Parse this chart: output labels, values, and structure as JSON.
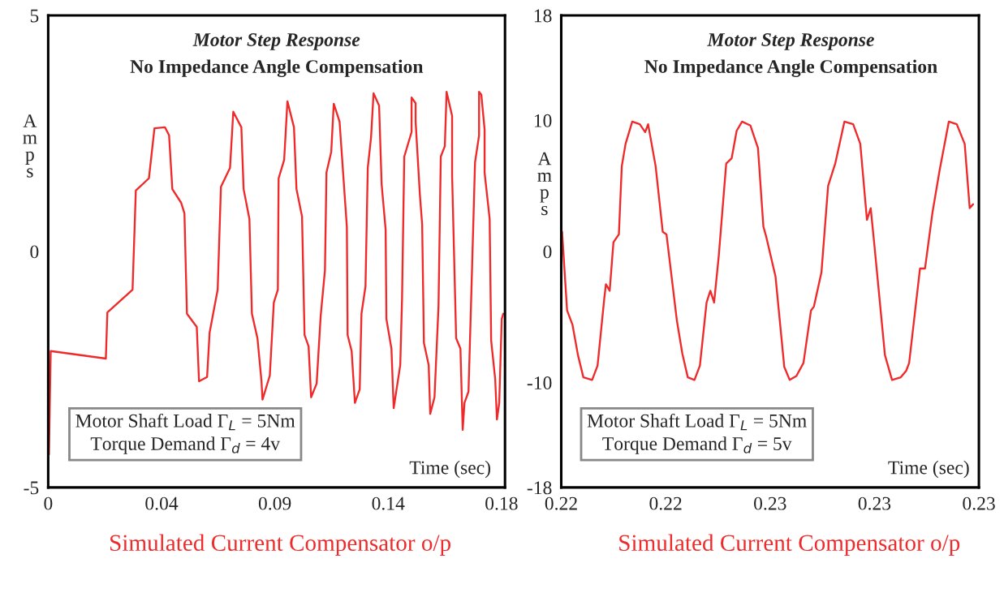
{
  "chart_data": [
    {
      "type": "line",
      "title": "Motor Step Response",
      "subtitle": "No Impedance Angle Compensation",
      "xlabel": "Time (sec)",
      "ylabel": "Amps",
      "annotations": [
        "Motor Shaft Load Γ$_{L}$ = 5Nm\nTorque Demand Γ$_{d}$ = 4v",
        "Simulated Current Compensator o/p"
      ],
      "xlim": [
        0,
        0.1814
      ],
      "ylim": [
        -5,
        5
      ],
      "xticks": [
        0,
        {
          "value": 0.045,
          "label": "0.04"
        },
        0.09,
        {
          "value": 0.135,
          "label": "0.14"
        },
        0.18
      ],
      "yticks": [
        -5,
        0,
        5
      ],
      "grid": false,
      "series": [
        {
          "color": "#ee2a2a",
          "x": [
            0.0003,
            0.001,
            0.0229,
            0.0235,
            0.0335,
            0.0348,
            0.04,
            0.0422,
            0.0464,
            0.048,
            0.0493,
            0.0528,
            0.0541,
            0.0551,
            0.059,
            0.0599,
            0.0631,
            0.0641,
            0.0673,
            0.0686,
            0.0722,
            0.0735,
            0.0767,
            0.0776,
            0.0799,
            0.0809,
            0.0831,
            0.0847,
            0.0851,
            0.088,
            0.0896,
            0.0912,
            0.0915,
            0.0937,
            0.095,
            0.0976,
            0.0986,
            0.1008,
            0.1018,
            0.1034,
            0.1044,
            0.1066,
            0.1082,
            0.1099,
            0.1105,
            0.1124,
            0.1134,
            0.1157,
            0.1186,
            0.1189,
            0.1205,
            0.1218,
            0.1237,
            0.1244,
            0.126,
            0.1269,
            0.1282,
            0.1292,
            0.1314,
            0.1324,
            0.134,
            0.1343,
            0.1363,
            0.1372,
            0.1398,
            0.1405,
            0.1414,
            0.1443,
            0.1443,
            0.1459,
            0.1459,
            0.1476,
            0.1485,
            0.1492,
            0.1511,
            0.1517,
            0.1534,
            0.155,
            0.1559,
            0.1575,
            0.1582,
            0.1604,
            0.1604,
            0.162,
            0.1637,
            0.1646,
            0.1653,
            0.1669,
            0.1678,
            0.1695,
            0.1711,
            0.1711,
            0.172,
            0.1733,
            0.1733,
            0.1753,
            0.1759,
            0.1775,
            0.1782,
            0.1791,
            0.1801,
            0.1807
          ],
          "values": [
            -4.3,
            -2.11,
            -2.27,
            -1.29,
            -0.81,
            1.29,
            1.55,
            2.61,
            2.63,
            2.46,
            1.32,
            1.03,
            0.81,
            -1.32,
            -1.6,
            -2.75,
            -2.66,
            -1.72,
            -0.81,
            1.37,
            1.77,
            2.96,
            2.63,
            1.32,
            0.69,
            -1.32,
            -1.84,
            -2.75,
            -3.14,
            -2.63,
            -1.08,
            -0.81,
            1.55,
            1.94,
            3.18,
            2.63,
            1.32,
            0.74,
            -1.77,
            -2.01,
            -3.09,
            -2.8,
            -1.37,
            -0.4,
            1.67,
            2.11,
            3.13,
            2.75,
            0.52,
            -1.77,
            -2.11,
            -3.21,
            -2.92,
            -1.32,
            -0.74,
            1.77,
            2.41,
            3.35,
            3.09,
            1.43,
            0.46,
            -1.43,
            -2.06,
            -3.32,
            -2.41,
            -1.03,
            2.01,
            2.53,
            3.26,
            3.14,
            2.75,
            1.2,
            0.57,
            -1.94,
            -2.41,
            -3.44,
            -3.09,
            -1.15,
            2.01,
            2.23,
            3.38,
            2.87,
            1.6,
            -1.84,
            -2.06,
            -3.78,
            -3.21,
            -2.97,
            -1.32,
            1.89,
            2.46,
            3.38,
            3.32,
            2.58,
            1.67,
            0.69,
            -1.89,
            -2.7,
            -3.56,
            -3.21,
            -1.43,
            -1.32
          ]
        }
      ]
    },
    {
      "type": "line",
      "title": "Motor Step Response",
      "subtitle": "No Impedance Angle Compensation",
      "xlabel": "Time (sec)",
      "ylabel": "Amps",
      "annotations": [
        "Motor Shaft Load Γ$_{L}$ = 5Nm\nTorque Demand Γ$_{d}$ = 5v",
        "Simulated Current Compensator o/p"
      ],
      "xlim": [
        0.22,
        0.23
      ],
      "ylim": [
        -18,
        18
      ],
      "xticks": [
        0.22,
        {
          "value": 0.2225,
          "label": "0.22"
        },
        {
          "value": 0.225,
          "label": "0.23"
        },
        {
          "value": 0.2275,
          "label": "0.23"
        },
        0.23
      ],
      "yticks": [
        -18,
        -10,
        0,
        10,
        18
      ],
      "grid": false,
      "series": [
        {
          "color": "#ee2a2a",
          "x": [
            0.22002,
            0.22014,
            0.22027,
            0.2204,
            0.22053,
            0.22074,
            0.22087,
            0.22103,
            0.22107,
            0.22116,
            0.22125,
            0.22138,
            0.22145,
            0.22154,
            0.2217,
            0.22188,
            0.22201,
            0.22208,
            0.22226,
            0.22243,
            0.22252,
            0.22277,
            0.2229,
            0.22303,
            0.22319,
            0.22332,
            0.22348,
            0.22357,
            0.22366,
            0.22377,
            0.22395,
            0.22408,
            0.2242,
            0.22433,
            0.22453,
            0.22471,
            0.22484,
            0.22491,
            0.22513,
            0.22534,
            0.22547,
            0.22563,
            0.2258,
            0.22598,
            0.22605,
            0.22623,
            0.22639,
            0.22656,
            0.22678,
            0.22699,
            0.22716,
            0.22732,
            0.22741,
            0.2275,
            0.22775,
            0.22792,
            0.22813,
            0.22826,
            0.22833,
            0.22859,
            0.22871,
            0.22889,
            0.22906,
            0.22928,
            0.22947,
            0.22966,
            0.22978,
            0.22986
          ],
          "values": [
            1.5,
            -4.5,
            -5.6,
            -7.9,
            -9.6,
            -9.8,
            -8.7,
            -3.6,
            -2.5,
            -3.0,
            0.7,
            1.3,
            6.5,
            8.2,
            9.9,
            9.7,
            9.1,
            9.7,
            6.5,
            1.5,
            1.3,
            -5.3,
            -7.8,
            -9.6,
            -9.8,
            -8.7,
            -3.9,
            -3.0,
            -3.9,
            -0.4,
            6.7,
            7.1,
            9.2,
            9.9,
            9.6,
            7.9,
            1.9,
            1.1,
            -1.9,
            -8.8,
            -9.8,
            -9.5,
            -8.5,
            -4.5,
            -4.2,
            -1.6,
            5.0,
            6.7,
            9.9,
            9.7,
            8.2,
            2.4,
            3.3,
            0.4,
            -7.9,
            -9.8,
            -9.6,
            -9.1,
            -8.5,
            -1.3,
            -1.3,
            3.0,
            6.2,
            9.9,
            9.7,
            8.2,
            3.3,
            3.6
          ]
        }
      ]
    }
  ]
}
